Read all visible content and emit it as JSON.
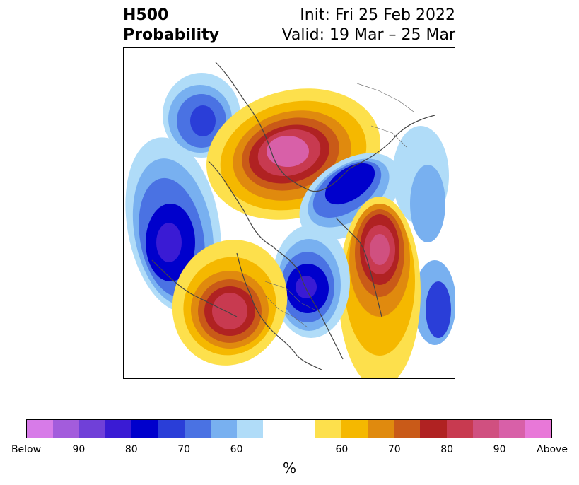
{
  "header": {
    "title_line1": "H500",
    "title_line2": "Probability",
    "init": "Init: Fri 25 Feb 2022",
    "valid": "Valid: 19 Mar – 25 Mar"
  },
  "colorbar": {
    "colors": [
      "#d77be8",
      "#a35cdc",
      "#7040d8",
      "#3a1bd4",
      "#0000cc",
      "#2a3ed8",
      "#4a72e3",
      "#78b0f0",
      "#b0dcf8",
      "#ffffff",
      "#ffffff",
      "#fde04c",
      "#f5b800",
      "#e08a0e",
      "#c95a18",
      "#b02222",
      "#c83a50",
      "#d05080",
      "#d860a8",
      "#e878d8"
    ],
    "ticks": [
      "Below",
      "90",
      "80",
      "70",
      "60",
      "",
      "60",
      "70",
      "80",
      "90",
      "Above"
    ],
    "unit": "%"
  },
  "map": {
    "colors": {
      "blue_light": "#b0dcf8",
      "blue_mid": "#78b0f0",
      "blue": "#4a72e3",
      "blue_dark": "#0000cc",
      "yellow": "#fde04c",
      "orange": "#f5b800",
      "red": "#b02222",
      "pink": "#d860a8",
      "coast": "#444444"
    }
  }
}
